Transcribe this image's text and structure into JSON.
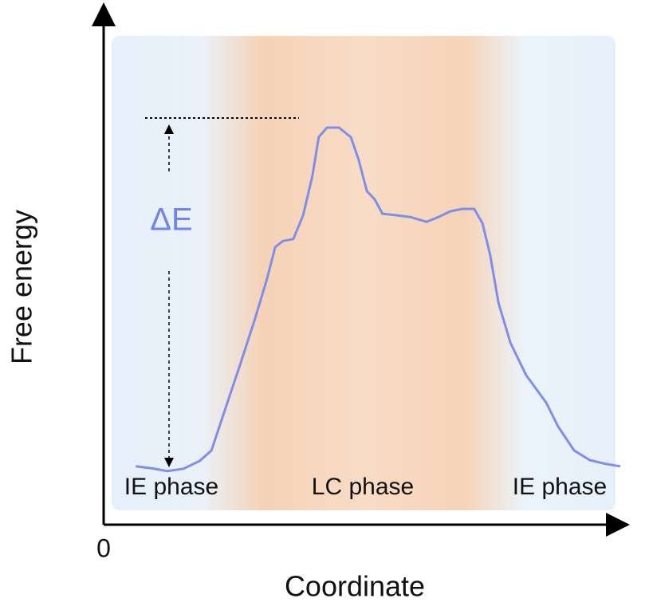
{
  "chart_data": {
    "type": "line",
    "xlabel": "Coordinate",
    "ylabel": "Free energy",
    "xlim": [
      0,
      100
    ],
    "ylim": [
      0,
      100
    ],
    "xticks": [
      0
    ],
    "regions": [
      "IE phase",
      "LC phase",
      "IE phase"
    ],
    "annotation": "ΔE",
    "series": [
      {
        "color": "#7f8ee8",
        "x": [
          6.2,
          9.2,
          12.3,
          15.4,
          18.5,
          20.8,
          23.1,
          26.2,
          29.2,
          31.5,
          33.1,
          34.6,
          36.6,
          38.5,
          40.3,
          41.5,
          43.1,
          45.4,
          47.7,
          49.2,
          50.8,
          52.3,
          53.8,
          56.2,
          59.2,
          62.3,
          64.6,
          66.9,
          69.2,
          71.5,
          73.1,
          74.6,
          76.2,
          78.5,
          81.5,
          85.4,
          87.7,
          90.8,
          93.8,
          96.9,
          99.7
        ],
        "values": [
          12.2,
          11.8,
          11.2,
          11.7,
          13.3,
          15.5,
          23,
          33,
          43,
          51.3,
          58,
          59.3,
          59.7,
          64.7,
          73,
          81,
          83,
          83,
          81,
          76.3,
          69.7,
          68,
          65,
          64.7,
          64.3,
          63.3,
          64.3,
          65.5,
          66,
          66,
          63,
          56.3,
          46.3,
          38,
          31.3,
          25.5,
          20.5,
          15.5,
          13.5,
          12.7,
          12.2
        ]
      }
    ]
  }
}
